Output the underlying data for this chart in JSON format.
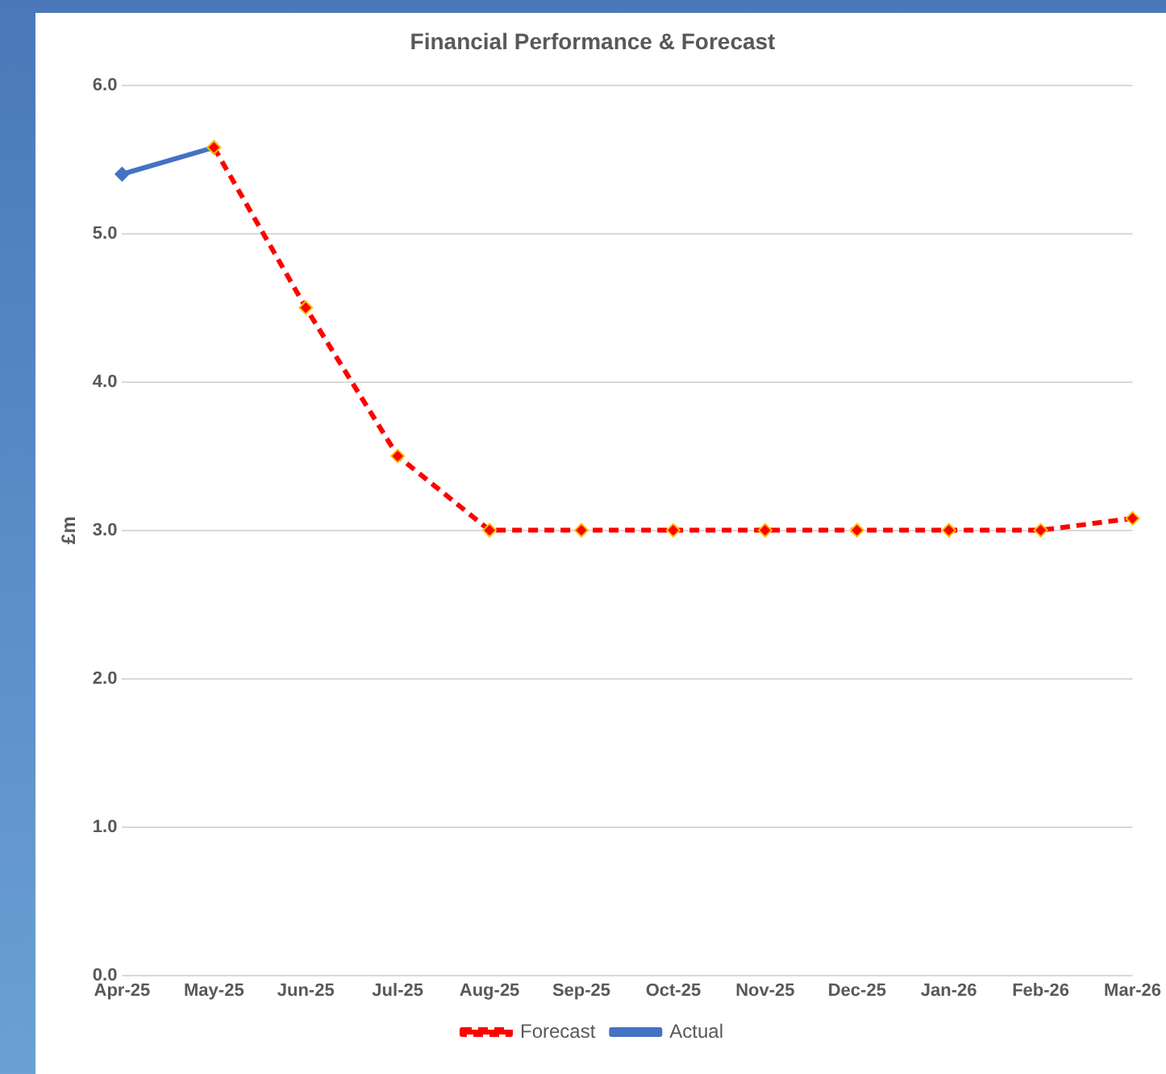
{
  "chart_data": {
    "type": "line",
    "title": "Financial Performance & Forecast",
    "ylabel": "£m",
    "categories": [
      "Apr-25",
      "May-25",
      "Jun-25",
      "Jul-25",
      "Aug-25",
      "Sep-25",
      "Oct-25",
      "Nov-25",
      "Dec-25",
      "Jan-26",
      "Feb-26",
      "Mar-26"
    ],
    "series": [
      {
        "name": "Actual",
        "color": "#4472c4",
        "line_style": "solid",
        "values": [
          5.4,
          5.58,
          null,
          null,
          null,
          null,
          null,
          null,
          null,
          null,
          null,
          null
        ]
      },
      {
        "name": "Forecast",
        "color": "#ff0000",
        "line_style": "dashed",
        "values": [
          null,
          5.58,
          4.5,
          3.5,
          3.0,
          3.0,
          3.0,
          3.0,
          3.0,
          3.0,
          3.0,
          3.08
        ]
      }
    ],
    "ylim": [
      0,
      6
    ],
    "yticks": [
      {
        "value": 0,
        "label": "0.0"
      },
      {
        "value": 1,
        "label": "1.0"
      },
      {
        "value": 2,
        "label": "2.0"
      },
      {
        "value": 3,
        "label": "3.0"
      },
      {
        "value": 4,
        "label": "4.0"
      },
      {
        "value": 5,
        "label": "5.0"
      },
      {
        "value": 6,
        "label": "6.0"
      }
    ],
    "grid": "y",
    "legend": "bottom",
    "marker": "diamond"
  }
}
